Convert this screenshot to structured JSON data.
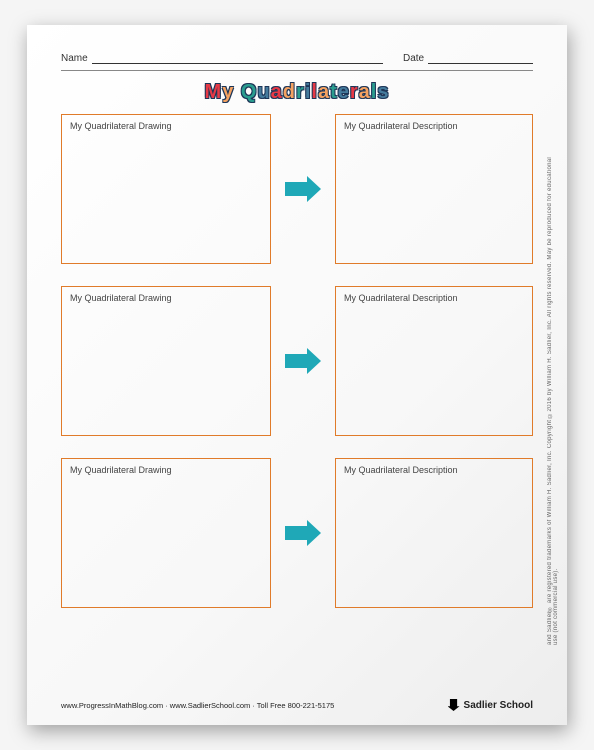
{
  "header": {
    "name_label": "Name",
    "date_label": "Date"
  },
  "title": {
    "text": "My Quadrilaterals",
    "char_colors": [
      "#e63946",
      "#f4a261",
      "#2a9d8f",
      "#457b9d",
      "#e63946",
      "#f4a261",
      "#2a9d8f",
      "#457b9d",
      "#e63946",
      "#f4a261",
      "#2a9d8f",
      "#457b9d",
      "#e63946",
      "#f4a261",
      "#2a9d8f",
      "#457b9d",
      "#e63946"
    ],
    "outline_color": "#1d3557",
    "fontsize": 20
  },
  "boxes": {
    "border_color": "#e07b2a",
    "label_fontsize": 9,
    "left_label": "My Quadrilateral Drawing",
    "right_label": "My Quadrilateral Description",
    "left_width": 210,
    "right_width": 198,
    "height": 150
  },
  "arrow": {
    "color": "#1fa8b7",
    "shaft_width": 22,
    "shaft_height": 14,
    "head_size": 13
  },
  "row_count": 3,
  "background_color": "#ffffff",
  "footer": {
    "left": "www.ProgressInMathBlog.com · www.SadlierSchool.com · Toll Free 800-221-5175",
    "brand": "Sadlier School",
    "side": "and Sadlier® are registered trademarks of William H. Sadlier, Inc.   Copyright ©2016 by William H. Sadlier, Inc. All rights reserved.   May be reproduced for educational use (not commercial use)."
  }
}
